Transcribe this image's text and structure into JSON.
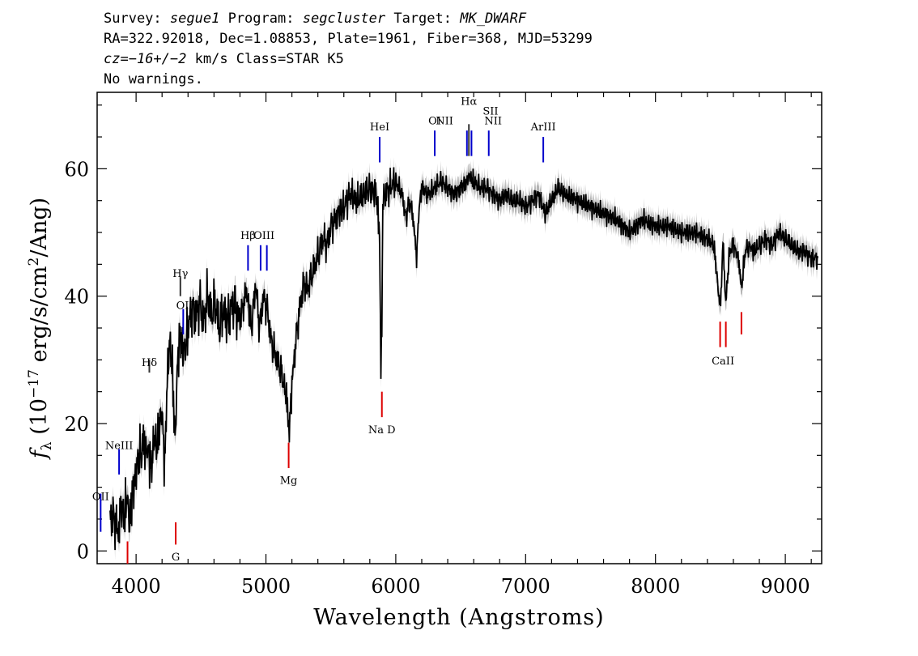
{
  "header": {
    "survey_label": "Survey:",
    "survey": "segue1",
    "program_label": "Program:",
    "program": "segcluster",
    "target_label": "Target:",
    "target": "MK_DWARF",
    "line2": "RA=322.92018, Dec=1.08853, Plate=1961, Fiber=368, MJD=53299",
    "cz_label": "cz=",
    "cz": "−16+/−2",
    "cz_unit": "km/s Class=STAR K5",
    "line4": "No warnings."
  },
  "colors": {
    "flux": "#000000",
    "error_band": "#b4b4b4",
    "emission": "#0000cc",
    "absorption": "#dd0000"
  },
  "chart_data": {
    "type": "line",
    "xlabel": "Wavelength (Angstroms)",
    "ylabel": "f_λ (10^-17 erg/s/cm^2/Ang)",
    "ylabel_parts": {
      "f": "f",
      "sub": "λ",
      "a": " (10",
      "exp": "−17",
      "b": " erg/s/cm",
      "exp2": "2",
      "c": "/Ang)"
    },
    "xlim": [
      3700,
      9280
    ],
    "ylim": [
      -2,
      72
    ],
    "x_ticks": [
      4000,
      5000,
      6000,
      7000,
      8000,
      9000
    ],
    "x_tick_labels": [
      "4000",
      "5000",
      "6000",
      "7000",
      "8000",
      "9000"
    ],
    "y_ticks": [
      0,
      20,
      40,
      60
    ],
    "y_tick_labels": [
      "0",
      "20",
      "40",
      "60"
    ],
    "grid": false,
    "series": [
      {
        "x": [
          3800,
          3830,
          3860,
          3890,
          3910,
          3930,
          3950,
          3970,
          3990,
          4010,
          4030,
          4060,
          4080,
          4100,
          4120,
          4140,
          4160,
          4180,
          4200,
          4220,
          4240,
          4260,
          4280,
          4300,
          4320,
          4340,
          4360,
          4380,
          4400,
          4430,
          4460,
          4490,
          4520,
          4550,
          4580,
          4610,
          4640,
          4670,
          4700,
          4730,
          4760,
          4790,
          4820,
          4850,
          4870,
          4890,
          4920,
          4950,
          4980,
          5010,
          5040,
          5070,
          5100,
          5130,
          5150,
          5170,
          5180,
          5200,
          5230,
          5260,
          5290,
          5320,
          5350,
          5380,
          5410,
          5440,
          5470,
          5500,
          5530,
          5560,
          5600,
          5650,
          5700,
          5750,
          5800,
          5850,
          5875,
          5885,
          5893,
          5900,
          5920,
          5950,
          6000,
          6050,
          6080,
          6100,
          6130,
          6160,
          6180,
          6200,
          6250,
          6300,
          6350,
          6400,
          6450,
          6500,
          6550,
          6563,
          6600,
          6650,
          6700,
          6750,
          6800,
          6850,
          6900,
          6950,
          7000,
          7050,
          7100,
          7150,
          7200,
          7250,
          7300,
          7400,
          7500,
          7600,
          7700,
          7800,
          7900,
          8000,
          8100,
          8200,
          8300,
          8400,
          8450,
          8498,
          8520,
          8542,
          8570,
          8600,
          8640,
          8662,
          8690,
          8720,
          8760,
          8800,
          8850,
          8900,
          8950,
          9000,
          9050,
          9100,
          9150,
          9200,
          9250
        ],
        "y": [
          6,
          5,
          3,
          7,
          5,
          9,
          4,
          9,
          11,
          14,
          15,
          17,
          16,
          15,
          13,
          18,
          16,
          20,
          22,
          13,
          27,
          33,
          28,
          17,
          30,
          34,
          31,
          32,
          35,
          38,
          37,
          39,
          36,
          40,
          37,
          39,
          35,
          38,
          36,
          38,
          39,
          36,
          38,
          41,
          38,
          35,
          42,
          35,
          40,
          38,
          33,
          31,
          29,
          27,
          25,
          22,
          19,
          26,
          33,
          38,
          42,
          41,
          43,
          45,
          47,
          49,
          48,
          51,
          52,
          53,
          54,
          56,
          55,
          56,
          57,
          56,
          50,
          28,
          35,
          55,
          56,
          57,
          58,
          56,
          52,
          55,
          53,
          46,
          54,
          57,
          56,
          57,
          58,
          57,
          56,
          57,
          58,
          59,
          58,
          57,
          57,
          56,
          55,
          56,
          55,
          55,
          54,
          55,
          56,
          53,
          55,
          57,
          56,
          55,
          54,
          53,
          52,
          50,
          52,
          51,
          51,
          50,
          50,
          49,
          48,
          38,
          48,
          39,
          47,
          48,
          46,
          41,
          47,
          48,
          47,
          48,
          49,
          48,
          50,
          49,
          48,
          47,
          47,
          46,
          46
        ]
      }
    ],
    "annotations": {
      "emission": [
        "OII",
        "NeIII",
        "Hδ",
        "Hγ",
        "OIII",
        "Hβ",
        "OIII",
        "HeI",
        "OI",
        "NII",
        "Hα",
        "NII",
        "SII",
        "ArIII"
      ],
      "absorption": [
        "G",
        "Mg",
        "Na D",
        "CaII"
      ]
    }
  }
}
